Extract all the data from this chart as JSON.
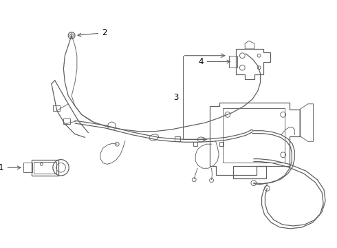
{
  "background_color": "#ffffff",
  "line_color": "#606060",
  "label_color": "#000000",
  "fig_width": 4.9,
  "fig_height": 3.6,
  "dpi": 100
}
